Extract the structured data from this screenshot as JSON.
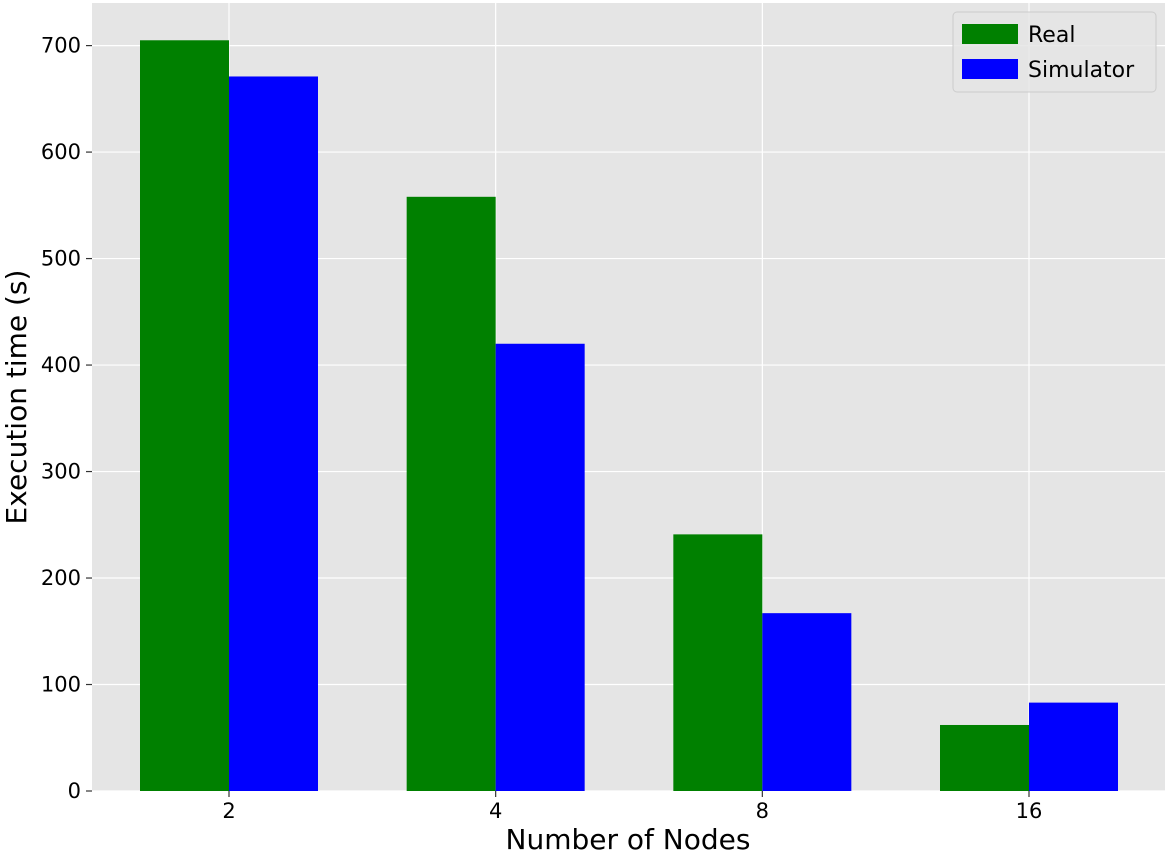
{
  "chart_data": {
    "type": "bar",
    "title": "",
    "xlabel": "Number of Nodes",
    "ylabel": "Execution time (s)",
    "categories": [
      "2",
      "4",
      "8",
      "16"
    ],
    "series": [
      {
        "name": "Real",
        "color": "#008000",
        "values": [
          705,
          558,
          241,
          62
        ]
      },
      {
        "name": "Simulator",
        "color": "#0000ff",
        "values": [
          671,
          420,
          167,
          83
        ]
      }
    ],
    "ylim": [
      0,
      740
    ],
    "yticks": [
      0,
      100,
      200,
      300,
      400,
      500,
      600,
      700
    ],
    "grid": true,
    "background": "#e5e5e5",
    "gridcolor": "#ffffff",
    "legend": "top-right"
  }
}
